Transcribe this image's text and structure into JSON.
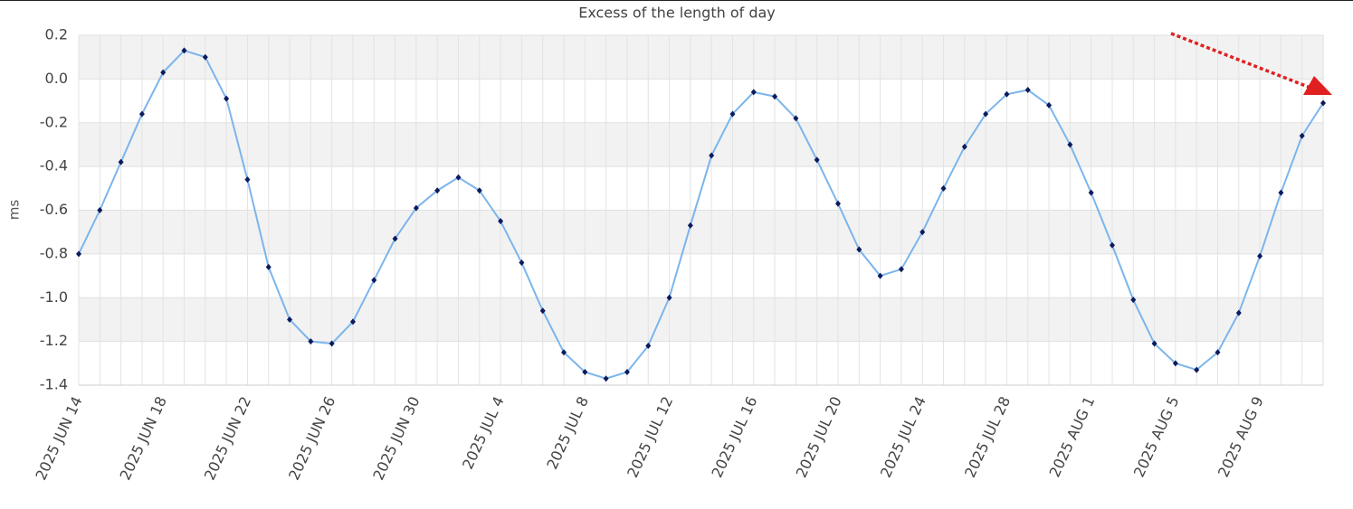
{
  "chart_data": {
    "type": "line",
    "title": "Excess of the length of day",
    "y_label": "ms",
    "categories": [
      "2025 JUN 14",
      null,
      null,
      null,
      "2025 JUN 18",
      null,
      null,
      null,
      "2025 JUN 22",
      null,
      null,
      null,
      "2025 JUN 26",
      null,
      null,
      null,
      "2025 JUN 30",
      null,
      null,
      null,
      "2025 JUL 4",
      null,
      null,
      null,
      "2025 JUL 8",
      null,
      null,
      null,
      "2025 JUL 12",
      null,
      null,
      null,
      "2025 JUL 16",
      null,
      null,
      null,
      "2025 JUL 20",
      null,
      null,
      null,
      "2025 JUL 24",
      null,
      null,
      null,
      "2025 JUL 28",
      null,
      null,
      null,
      "2025 AUG 1",
      null,
      null,
      null,
      "2025 AUG 5",
      null,
      null,
      null,
      "2025 AUG 9",
      null,
      null,
      null
    ],
    "series": [
      {
        "color": "#7cb5ec",
        "marker_color": "#0d1a5c",
        "values": [
          -0.8,
          -0.6,
          -0.38,
          -0.16,
          0.03,
          0.13,
          0.1,
          -0.09,
          -0.46,
          -0.86,
          -1.1,
          -1.2,
          -1.21,
          -1.11,
          -0.92,
          -0.73,
          -0.59,
          -0.51,
          -0.45,
          -0.51,
          -0.65,
          -0.84,
          -1.06,
          -1.25,
          -1.34,
          -1.37,
          -1.34,
          -1.22,
          -1.0,
          -0.67,
          -0.35,
          -0.16,
          -0.06,
          -0.08,
          -0.18,
          -0.37,
          -0.57,
          -0.78,
          -0.9,
          -0.87,
          -0.7,
          -0.5,
          -0.31,
          -0.16,
          -0.07,
          -0.05,
          -0.12,
          -0.3,
          -0.52,
          -0.76,
          -1.01,
          -1.21,
          -1.3,
          -1.33,
          -1.25,
          -1.07,
          -0.81,
          -0.52,
          -0.26,
          -0.11
        ]
      }
    ],
    "ylim": [
      -1.4,
      0.2
    ],
    "yticks": [
      -1.4,
      -1.2,
      {
        "value": -1,
        "label": "-1.0"
      },
      -0.8,
      -0.6,
      -0.4,
      -0.2,
      {
        "value": 0,
        "label": "0.0"
      },
      0.2
    ],
    "grid": true
  }
}
